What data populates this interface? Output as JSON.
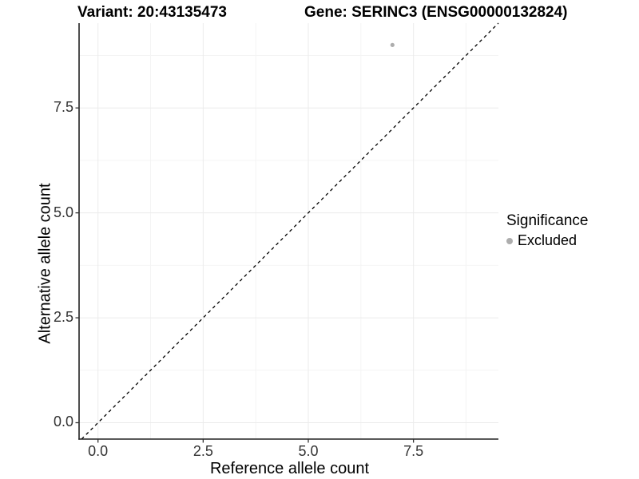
{
  "title": {
    "variant": "Variant: 20:43135473",
    "gene": "Gene: SERINC3 (ENSG00000132824)"
  },
  "legend": {
    "title": "Significance",
    "items": [
      {
        "label": "Excluded",
        "color": "#adadad"
      }
    ]
  },
  "colors": {
    "background": "#ffffff",
    "grid_major": "#ebebeb",
    "grid_minor": "#f4f4f4",
    "axis_line": "#222222",
    "tick_mark": "#333333",
    "tick_text": "#333333",
    "reference_line": "#000000",
    "point": "#adadad"
  },
  "chart_data": {
    "type": "scatter",
    "title": "Variant: 20:43135473    Gene: SERINC3 (ENSG00000132824)",
    "xlabel": "Reference allele count",
    "ylabel": "Alternative allele count",
    "xlim": [
      -0.45,
      9.52
    ],
    "ylim": [
      -0.39,
      9.52
    ],
    "x_ticks": [
      0,
      2.5,
      5,
      7.5
    ],
    "x_tick_labels": [
      "0.0",
      "2.5",
      "5.0",
      "7.5"
    ],
    "y_ticks": [
      0,
      2.5,
      5,
      7.5
    ],
    "y_tick_labels": [
      "0.0",
      "2.5",
      "5.0",
      "7.5"
    ],
    "x_minor_ticks": [
      1.25,
      3.75,
      6.25,
      8.75
    ],
    "y_minor_ticks": [
      1.25,
      3.75,
      6.25,
      8.75
    ],
    "grid": true,
    "legend_position": "right",
    "series": [
      {
        "name": "Excluded",
        "color": "#adadad",
        "points": [
          {
            "x": 7,
            "y": 9
          }
        ]
      }
    ],
    "reference_line": {
      "type": "identity",
      "slope": 1,
      "intercept": 0,
      "style": "dashed",
      "color": "#000000"
    }
  }
}
